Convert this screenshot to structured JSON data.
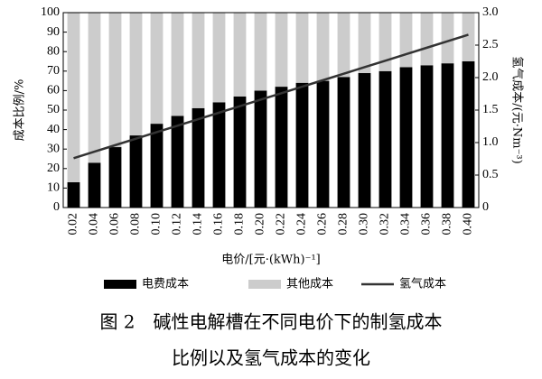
{
  "chart_data": {
    "type": "bar",
    "stacked": true,
    "caption": [
      "图 2　碱性电解槽在不同电价下的制氢成本",
      "比例以及氢气成本的变化"
    ],
    "xlabel": "电价/[元·(kWh)⁻¹]",
    "ylabel": "成本比例/%",
    "y2label": "氢气成本/(元·Nm⁻³)",
    "categories": [
      "0.02",
      "0.04",
      "0.06",
      "0.08",
      "0.10",
      "0.12",
      "0.14",
      "0.16",
      "0.18",
      "0.20",
      "0.22",
      "0.24",
      "0.26",
      "0.28",
      "0.30",
      "0.32",
      "0.34",
      "0.36",
      "0.38",
      "0.40"
    ],
    "series": [
      {
        "name": "电费成本",
        "color": "#000000",
        "values": [
          13,
          23,
          31,
          37,
          43,
          47,
          51,
          54,
          57,
          60,
          62,
          64,
          65,
          67,
          69,
          70,
          72,
          73,
          74,
          75
        ]
      },
      {
        "name": "其他成本",
        "color": "#cccccc",
        "values": [
          87,
          77,
          69,
          63,
          57,
          53,
          49,
          46,
          43,
          40,
          38,
          36,
          35,
          33,
          31,
          30,
          28,
          27,
          26,
          25
        ]
      },
      {
        "name": "氢气成本",
        "color": "#333333",
        "type": "line",
        "axis": "y2",
        "values": [
          0.76,
          0.86,
          0.96,
          1.06,
          1.16,
          1.26,
          1.36,
          1.46,
          1.56,
          1.66,
          1.76,
          1.86,
          1.96,
          2.06,
          2.16,
          2.26,
          2.36,
          2.46,
          2.56,
          2.66
        ]
      }
    ],
    "ylim": [
      0,
      100
    ],
    "yticks": [
      0,
      10,
      20,
      30,
      40,
      50,
      60,
      70,
      80,
      90,
      100
    ],
    "y2lim": [
      0,
      3
    ],
    "y2ticks": [
      0,
      0.5,
      {
        "value": 1,
        "label": "1.0"
      },
      1.5,
      {
        "value": 2,
        "label": "2.0"
      },
      2.5,
      {
        "value": 3,
        "label": "3.0"
      }
    ]
  }
}
